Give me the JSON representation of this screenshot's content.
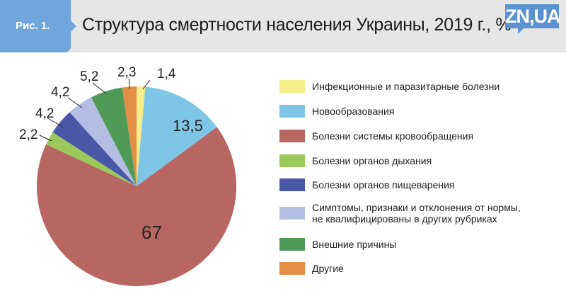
{
  "header": {
    "figure_label": "Рис. 1.",
    "title": "Структура смертности населения Украины, 2019 г., %",
    "logo": "ZN,UA"
  },
  "chart_data": {
    "type": "pie",
    "title": "Структура смертности населения Украины, 2019 г., %",
    "start": "top",
    "direction": "clockwise",
    "legend_position": "right",
    "slices": [
      {
        "name": "Инфекционные и паразитарные болезни",
        "value": 1.4,
        "label": "1,4",
        "color": "#f5ee8a"
      },
      {
        "name": "Новообразования",
        "value": 13.5,
        "label": "13,5",
        "color": "#7fc6e6"
      },
      {
        "name": "Болезни системы кровообращения",
        "value": 67,
        "label": "67",
        "color": "#b86662"
      },
      {
        "name": "Болезни органов дыхания",
        "value": 2.2,
        "label": "2,2",
        "color": "#9cc95c"
      },
      {
        "name": "Болезни органов пищеварения",
        "value": 4.2,
        "label": "4,2",
        "color": "#4a56a6"
      },
      {
        "name": "Симптомы, признаки и отклонения от нормы, не квалифицированы в других рубриках",
        "value": 4.2,
        "label": "4,2",
        "color": "#b4bee5",
        "legend_lines": [
          "Симптомы, признаки и отклонения от нормы,",
          "не квалифицированы в других рубриках"
        ]
      },
      {
        "name": "Внешние причины",
        "value": 5.2,
        "label": "5,2",
        "color": "#4f9a56"
      },
      {
        "name": "Другие",
        "value": 2.3,
        "label": "2,3",
        "color": "#e48f48"
      }
    ]
  }
}
